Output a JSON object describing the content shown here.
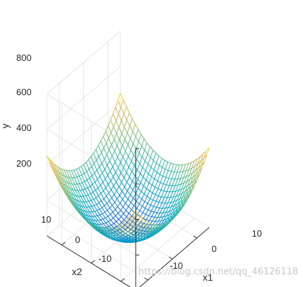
{
  "chart_data": {
    "type": "surface",
    "function": "y = x1^2 + x2^2",
    "x1_range": [
      -15,
      15
    ],
    "x2_range": [
      -15,
      15
    ],
    "grid_n": 31,
    "y_range": [
      0,
      800
    ],
    "z_ticks": [
      200,
      400,
      600,
      800
    ],
    "x1_ticks": [
      -10,
      0,
      10
    ],
    "x2_ticks": [
      -10,
      0,
      10
    ],
    "tick_labels": {
      "z": [
        "200",
        "400",
        "600",
        "800"
      ],
      "x1": [
        "-10",
        "0",
        "10"
      ],
      "x2": [
        "-10",
        "0",
        "10"
      ]
    },
    "xlabel": "x1",
    "ylabel": "x2",
    "zlabel": "y",
    "colormap": "parula",
    "grid": true
  },
  "watermark": "https://blog.csdn.net/qq_46126118"
}
